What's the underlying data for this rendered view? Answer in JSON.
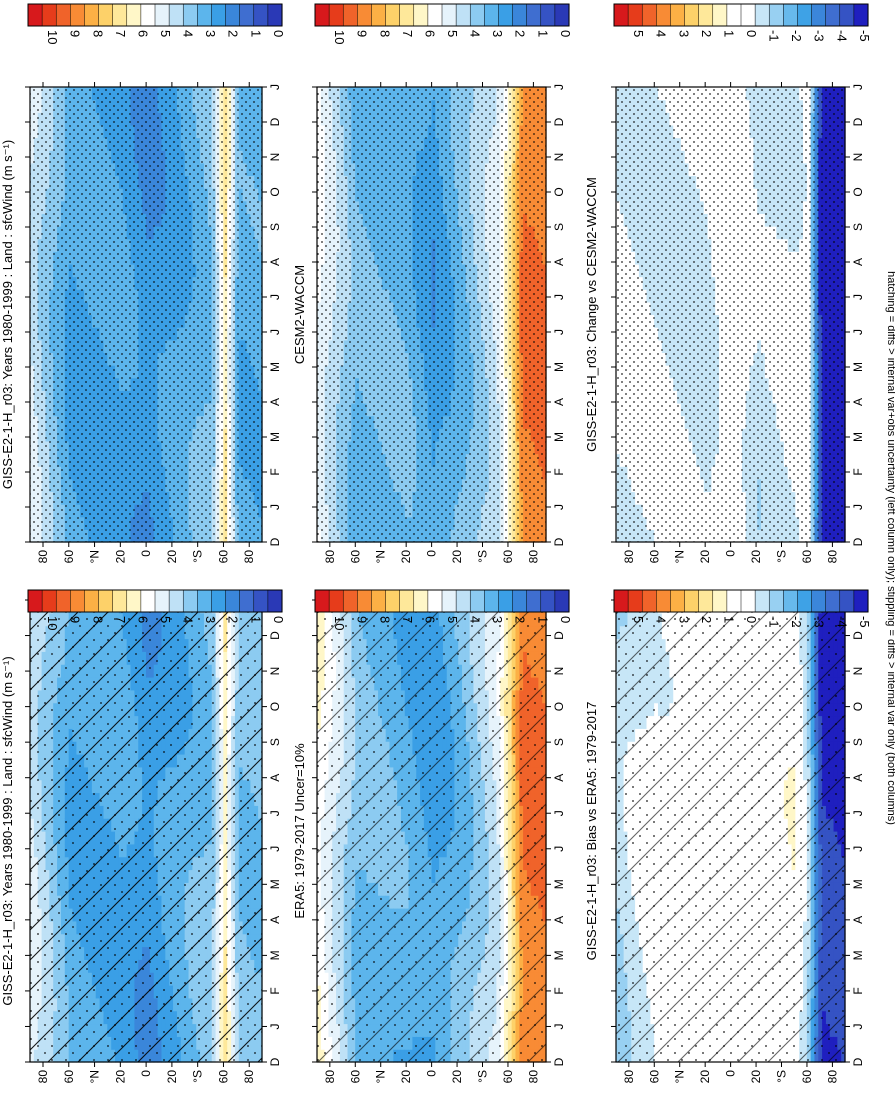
{
  "footnote": "hatching = diffs > internal var+obs uncertainty (left column only); stippling = diffs > internal var only (both columns)",
  "months": [
    "D",
    "J",
    "F",
    "M",
    "A",
    "M",
    "J",
    "J",
    "A",
    "S",
    "O",
    "N",
    "D",
    "J"
  ],
  "lat_ticks": [
    "80",
    "60",
    "°N",
    "20",
    "0",
    "20",
    "°S",
    "60",
    "80"
  ],
  "colorbars": {
    "abs": {
      "labels": [
        "10",
        "9",
        "8",
        "7",
        "6",
        "5",
        "4",
        "3",
        "2",
        "1",
        "0"
      ]
    },
    "diff": {
      "labels": [
        "5",
        "4",
        "3",
        "2",
        "1",
        "0",
        "-1",
        "-2",
        "-3",
        "-4",
        "-5"
      ]
    }
  },
  "colors": {
    "abs": [
      "#d7191c",
      "#e63c1b",
      "#f0632a",
      "#f88b35",
      "#fcb045",
      "#fdd169",
      "#fee89a",
      "#fff7c8",
      "#ffffff",
      "#e6f3fb",
      "#bfe1f6",
      "#8ccbf1",
      "#5cb5ec",
      "#3a9fe6",
      "#3a86da",
      "#3f6ed0",
      "#3553c4",
      "#2a39b6"
    ],
    "diff": [
      "#d7191c",
      "#e63c1b",
      "#f0632a",
      "#f88b35",
      "#fcb045",
      "#fdd169",
      "#fee89a",
      "#fff7c8",
      "#ffffff",
      "#ffffff",
      "#c7e6f7",
      "#98d0f2",
      "#67b9ec",
      "#3ea2e6",
      "#3b86da",
      "#3f6ed0",
      "#3553c4",
      "#1f1fbf"
    ]
  },
  "chart_data": [
    {
      "id": "p1",
      "type": "heatmap",
      "title": "GISS-E2-1-H_r03: Years 1980-1999 : Land : sfcWind (m s⁻¹)",
      "x_axis": "month (D–J)",
      "y_axis": "latitude 90S–90N",
      "colorbar": "abs",
      "range": [
        0,
        10
      ],
      "zonal_mean_by_lat": {
        "90N": 4.5,
        "60N": 2.9,
        "20N": 2.8,
        "0": 2.3,
        "20S": 2.8,
        "50S": 3.5,
        "60S": 6.0,
        "70S": 3.5
      },
      "hatching": "dense",
      "stippling": "moderate"
    },
    {
      "id": "p2",
      "type": "heatmap",
      "title": "GISS-E2-1-H_r03: Years 1980-1999 : Land : sfcWind (m s⁻¹)",
      "x_axis": "month (D–J)",
      "y_axis": "latitude 90S–90N",
      "colorbar": "abs",
      "range": [
        0,
        10
      ],
      "zonal_mean_by_lat": {
        "90N": 4.5,
        "60N": 2.8,
        "20N": 2.7,
        "0": 2.3,
        "20S": 2.7,
        "50S": 3.5,
        "60S": 6.3,
        "70S": 3.0
      },
      "hatching": "none",
      "stippling": "dense"
    },
    {
      "id": "p3",
      "type": "heatmap",
      "title": "ERA5: 1979-2017 Uncer=10%",
      "x_axis": "month (D–J)",
      "y_axis": "latitude 90S–90N",
      "colorbar": "abs",
      "range": [
        0,
        10
      ],
      "zonal_mean_by_lat": {
        "90N": 5.5,
        "60N": 3.4,
        "20N": 3.0,
        "0": 2.6,
        "20S": 3.2,
        "50S": 4.5,
        "60S": 6.3,
        "70S": 8.3
      },
      "hatching": "moderate",
      "stippling": "sparse"
    },
    {
      "id": "p4",
      "type": "heatmap",
      "title": "CESM2-WACCM",
      "x_axis": "month (D–J)",
      "y_axis": "latitude 90S–90N",
      "colorbar": "abs",
      "range": [
        0,
        10
      ],
      "zonal_mean_by_lat": {
        "90N": 5.0,
        "60N": 3.2,
        "20N": 3.2,
        "0": 2.5,
        "20S": 3.2,
        "50S": 4.5,
        "60S": 6.0,
        "70S": 8.3
      },
      "hatching": "none",
      "stippling": "dense"
    },
    {
      "id": "p5",
      "type": "heatmap",
      "title": "GISS-E2-1-H_r03: Bias vs ERA5: 1979-2017",
      "x_axis": "month (D–J)",
      "y_axis": "latitude 90S–90N",
      "colorbar": "diff",
      "range": [
        -5,
        5
      ],
      "zonal_mean_by_lat": {
        "90N": -1.0,
        "60N": -0.3,
        "20N": 0.0,
        "0": 0.2,
        "20S": 0.0,
        "50S": 0.3,
        "60S": -1.2,
        "70S": -4.5
      },
      "hatching": "moderate",
      "stippling": "moderate"
    },
    {
      "id": "p6",
      "type": "heatmap",
      "title": "GISS-E2-1-H_r03: Change vs CESM2-WACCM",
      "x_axis": "month (D–J)",
      "y_axis": "latitude 90S–90N",
      "colorbar": "diff",
      "range": [
        -5,
        5
      ],
      "zonal_mean_by_lat": {
        "90N": -0.5,
        "60N": -0.6,
        "20N": -0.7,
        "0": 0.2,
        "20S": -0.8,
        "50S": -0.5,
        "60S": -0.1,
        "70S": -4.8
      },
      "hatching": "none",
      "stippling": "dense"
    }
  ]
}
